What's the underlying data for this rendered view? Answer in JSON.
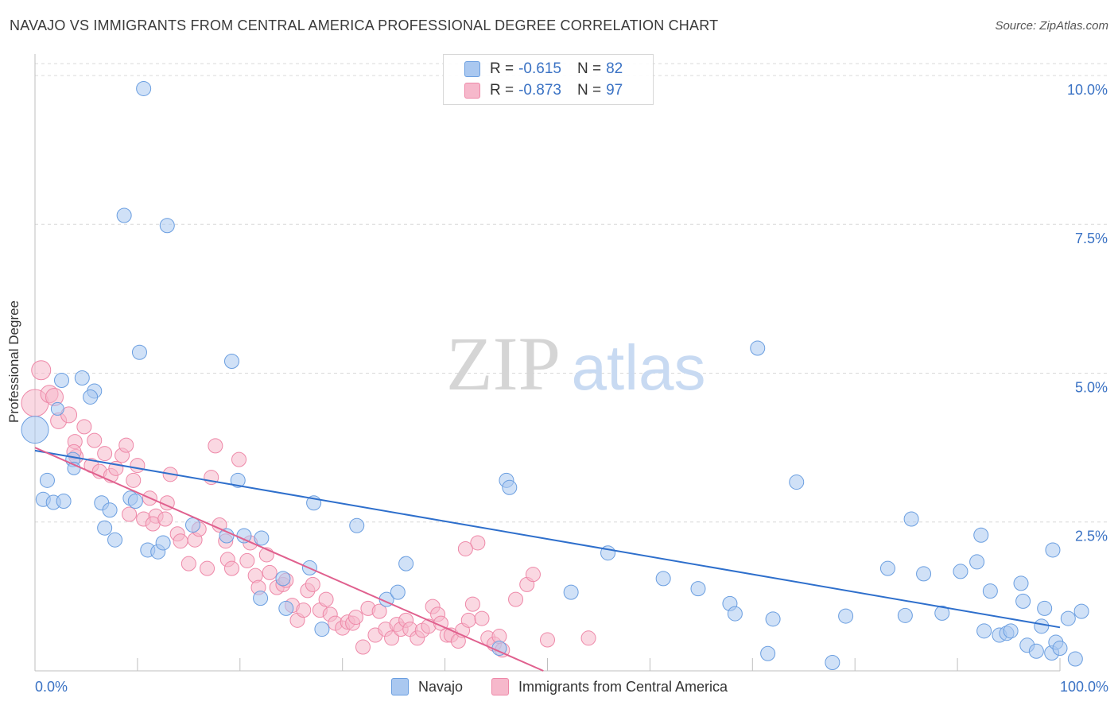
{
  "title": "NAVAJO VS IMMIGRANTS FROM CENTRAL AMERICA PROFESSIONAL DEGREE CORRELATION CHART",
  "source": "Source: ZipAtlas.com",
  "watermark": {
    "zip": "ZIP",
    "atlas": "atlas"
  },
  "legend": {
    "r_label": "R =",
    "n_label": "N =",
    "navajo": {
      "r": "-0.615",
      "n": "82"
    },
    "immigrants": {
      "r": "-0.873",
      "n": "97"
    }
  },
  "colors": {
    "navajo_fill": "#aac8f0",
    "navajo_stroke": "#6a9ee0",
    "navajo_line": "#2e6fcc",
    "imm_fill": "#f6b8cb",
    "imm_stroke": "#ee88a8",
    "imm_line": "#e0608e",
    "tick_label": "#3a72c4",
    "grid": "#d8d8d8"
  },
  "chart_data": {
    "type": "scatter",
    "title": "NAVAJO VS IMMIGRANTS FROM CENTRAL AMERICA PROFESSIONAL DEGREE CORRELATION CHART",
    "xlabel": "",
    "ylabel": "Professional Degree",
    "xlim": [
      0,
      100
    ],
    "ylim": [
      0,
      10.2
    ],
    "x_tick_labels": [
      "0.0%",
      "100.0%"
    ],
    "y_ticks": [
      2.5,
      5.0,
      7.5,
      10.0
    ],
    "y_tick_labels": [
      "2.5%",
      "5.0%",
      "7.5%",
      "10.0%"
    ],
    "series": [
      {
        "name": "Navajo",
        "r": -0.615,
        "n": 82,
        "trend": {
          "x": [
            0,
            100
          ],
          "y": [
            3.7,
            0.73
          ]
        },
        "points": [
          [
            0.0,
            4.05,
            34
          ],
          [
            2.6,
            4.88,
            18
          ],
          [
            4.6,
            4.92,
            18
          ],
          [
            5.8,
            4.7,
            18
          ],
          [
            5.4,
            4.6,
            18
          ],
          [
            2.2,
            4.4,
            16
          ],
          [
            1.2,
            3.2,
            18
          ],
          [
            3.7,
            3.55,
            18
          ],
          [
            3.8,
            3.4,
            16
          ],
          [
            0.8,
            2.88,
            18
          ],
          [
            1.8,
            2.83,
            18
          ],
          [
            2.8,
            2.85,
            18
          ],
          [
            6.5,
            2.82,
            18
          ],
          [
            7.3,
            2.7,
            18
          ],
          [
            6.8,
            2.4,
            18
          ],
          [
            7.8,
            2.2,
            18
          ],
          [
            9.3,
            2.9,
            18
          ],
          [
            9.8,
            2.85,
            18
          ],
          [
            11.0,
            2.03,
            18
          ],
          [
            12.0,
            2.0,
            18
          ],
          [
            12.5,
            2.15,
            18
          ],
          [
            10.6,
            9.78,
            18
          ],
          [
            8.7,
            7.65,
            18
          ],
          [
            12.9,
            7.48,
            18
          ],
          [
            10.2,
            5.35,
            18
          ],
          [
            19.2,
            5.2,
            18
          ],
          [
            15.4,
            2.45,
            18
          ],
          [
            18.7,
            2.27,
            18
          ],
          [
            20.4,
            2.27,
            18
          ],
          [
            19.8,
            3.2,
            18
          ],
          [
            22.1,
            2.23,
            18
          ],
          [
            27.2,
            2.82,
            18
          ],
          [
            26.8,
            1.73,
            18
          ],
          [
            24.2,
            1.55,
            18
          ],
          [
            22.0,
            1.22,
            18
          ],
          [
            24.5,
            1.05,
            18
          ],
          [
            28.0,
            0.7,
            18
          ],
          [
            31.4,
            2.44,
            18
          ],
          [
            34.3,
            1.2,
            18
          ],
          [
            35.4,
            1.32,
            18
          ],
          [
            36.2,
            1.8,
            18
          ],
          [
            46.0,
            3.2,
            18
          ],
          [
            46.3,
            3.08,
            18
          ],
          [
            52.3,
            1.32,
            18
          ],
          [
            55.9,
            1.98,
            18
          ],
          [
            61.3,
            1.55,
            18
          ],
          [
            64.7,
            1.38,
            18
          ],
          [
            67.8,
            1.13,
            18
          ],
          [
            68.3,
            0.96,
            18
          ],
          [
            70.5,
            5.42,
            18
          ],
          [
            72.0,
            0.87,
            18
          ],
          [
            71.5,
            0.29,
            18
          ],
          [
            74.3,
            3.17,
            18
          ],
          [
            77.8,
            0.14,
            18
          ],
          [
            79.1,
            0.92,
            18
          ],
          [
            83.2,
            1.72,
            18
          ],
          [
            84.9,
            0.93,
            18
          ],
          [
            85.5,
            2.55,
            18
          ],
          [
            86.7,
            1.63,
            18
          ],
          [
            88.5,
            0.97,
            18
          ],
          [
            90.3,
            1.67,
            18
          ],
          [
            91.9,
            1.83,
            18
          ],
          [
            92.3,
            2.28,
            18
          ],
          [
            92.6,
            0.67,
            18
          ],
          [
            93.2,
            1.34,
            18
          ],
          [
            94.1,
            0.6,
            18
          ],
          [
            94.8,
            0.63,
            18
          ],
          [
            95.2,
            0.67,
            18
          ],
          [
            96.2,
            1.47,
            18
          ],
          [
            96.4,
            1.17,
            18
          ],
          [
            96.8,
            0.43,
            18
          ],
          [
            97.7,
            0.33,
            18
          ],
          [
            98.2,
            0.75,
            18
          ],
          [
            98.5,
            1.05,
            18
          ],
          [
            99.2,
            0.3,
            18
          ],
          [
            99.6,
            0.48,
            18
          ],
          [
            100.0,
            0.38,
            18
          ],
          [
            100.8,
            0.88,
            18
          ],
          [
            101.5,
            0.2,
            18
          ],
          [
            102.1,
            1.0,
            18
          ],
          [
            99.3,
            2.03,
            18
          ],
          [
            45.3,
            0.38,
            18
          ]
        ]
      },
      {
        "name": "Immigrants from Central America",
        "r": -0.873,
        "n": 97,
        "trend": {
          "x": [
            0,
            49.6
          ],
          "y": [
            3.75,
            0.0
          ]
        },
        "points": [
          [
            0.0,
            4.5,
            34
          ],
          [
            0.6,
            5.05,
            24
          ],
          [
            1.4,
            4.65,
            22
          ],
          [
            1.9,
            4.6,
            22
          ],
          [
            2.3,
            4.2,
            20
          ],
          [
            3.3,
            4.3,
            20
          ],
          [
            3.9,
            3.85,
            18
          ],
          [
            4.8,
            4.1,
            18
          ],
          [
            4.0,
            3.6,
            18
          ],
          [
            3.8,
            3.68,
            18
          ],
          [
            5.5,
            3.45,
            18
          ],
          [
            5.8,
            3.87,
            18
          ],
          [
            6.3,
            3.35,
            18
          ],
          [
            6.8,
            3.65,
            18
          ],
          [
            7.4,
            3.28,
            18
          ],
          [
            7.9,
            3.4,
            18
          ],
          [
            8.5,
            3.62,
            18
          ],
          [
            8.9,
            3.79,
            18
          ],
          [
            9.6,
            3.2,
            18
          ],
          [
            10.0,
            3.45,
            18
          ],
          [
            9.2,
            2.63,
            18
          ],
          [
            10.6,
            2.55,
            18
          ],
          [
            11.2,
            2.9,
            18
          ],
          [
            11.8,
            2.6,
            18
          ],
          [
            11.5,
            2.47,
            18
          ],
          [
            12.7,
            2.55,
            18
          ],
          [
            12.9,
            2.82,
            18
          ],
          [
            13.2,
            3.3,
            18
          ],
          [
            13.9,
            2.3,
            18
          ],
          [
            14.2,
            2.18,
            18
          ],
          [
            15.0,
            1.8,
            18
          ],
          [
            15.6,
            2.2,
            18
          ],
          [
            16.0,
            2.38,
            18
          ],
          [
            16.8,
            1.72,
            18
          ],
          [
            17.2,
            3.25,
            18
          ],
          [
            17.6,
            3.78,
            18
          ],
          [
            18.0,
            2.45,
            18
          ],
          [
            18.6,
            2.18,
            18
          ],
          [
            18.8,
            1.87,
            18
          ],
          [
            19.2,
            1.72,
            18
          ],
          [
            19.9,
            3.55,
            18
          ],
          [
            20.7,
            1.85,
            18
          ],
          [
            21.0,
            2.15,
            18
          ],
          [
            21.5,
            1.6,
            18
          ],
          [
            21.8,
            1.4,
            18
          ],
          [
            22.6,
            1.95,
            18
          ],
          [
            22.9,
            1.65,
            18
          ],
          [
            23.6,
            1.4,
            18
          ],
          [
            24.2,
            1.45,
            18
          ],
          [
            24.5,
            1.52,
            18
          ],
          [
            25.1,
            1.1,
            18
          ],
          [
            25.6,
            0.85,
            18
          ],
          [
            26.2,
            1.02,
            18
          ],
          [
            26.6,
            1.35,
            18
          ],
          [
            27.1,
            1.45,
            18
          ],
          [
            27.8,
            1.02,
            18
          ],
          [
            28.4,
            1.2,
            18
          ],
          [
            28.8,
            0.95,
            18
          ],
          [
            29.3,
            0.8,
            18
          ],
          [
            30.0,
            0.72,
            18
          ],
          [
            30.5,
            0.82,
            18
          ],
          [
            31.0,
            0.8,
            18
          ],
          [
            31.3,
            0.9,
            18
          ],
          [
            32.0,
            0.4,
            18
          ],
          [
            32.5,
            1.05,
            18
          ],
          [
            33.2,
            0.6,
            18
          ],
          [
            33.6,
            1.0,
            18
          ],
          [
            34.2,
            0.7,
            18
          ],
          [
            34.8,
            0.55,
            18
          ],
          [
            35.3,
            0.78,
            18
          ],
          [
            35.7,
            0.7,
            18
          ],
          [
            36.2,
            0.85,
            18
          ],
          [
            36.6,
            0.7,
            18
          ],
          [
            37.3,
            0.55,
            18
          ],
          [
            37.8,
            0.68,
            18
          ],
          [
            38.4,
            0.75,
            18
          ],
          [
            38.8,
            1.08,
            18
          ],
          [
            39.3,
            0.95,
            18
          ],
          [
            39.6,
            0.8,
            18
          ],
          [
            40.2,
            0.6,
            18
          ],
          [
            40.6,
            0.6,
            18
          ],
          [
            41.3,
            0.5,
            18
          ],
          [
            41.7,
            0.68,
            18
          ],
          [
            42.3,
            0.85,
            18
          ],
          [
            42.7,
            1.12,
            18
          ],
          [
            43.2,
            2.15,
            18
          ],
          [
            43.6,
            0.88,
            18
          ],
          [
            44.2,
            0.55,
            18
          ],
          [
            44.8,
            0.45,
            18
          ],
          [
            45.3,
            0.58,
            18
          ],
          [
            45.6,
            0.35,
            18
          ],
          [
            46.9,
            1.2,
            18
          ],
          [
            48.0,
            1.45,
            18
          ],
          [
            48.6,
            1.62,
            18
          ],
          [
            50.0,
            0.52,
            18
          ],
          [
            54.0,
            0.55,
            18
          ],
          [
            42.0,
            2.05,
            18
          ]
        ]
      }
    ]
  }
}
